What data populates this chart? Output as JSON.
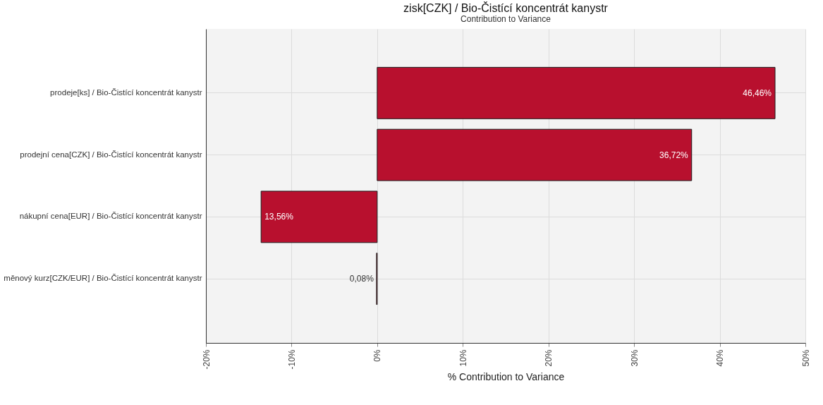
{
  "chart_data": {
    "type": "bar",
    "orientation": "horizontal",
    "title": "zisk[CZK] / Bio-Čistící koncentrát kanystr",
    "subtitle": "Contribution to Variance",
    "xlabel": "% Contribution to Variance",
    "categories": [
      "prodeje[ks] / Bio-Čistící koncentrát kanystr",
      "prodejní cena[CZK] / Bio-Čistící koncentrát kanystr",
      "nákupní cena[EUR] / Bio-Čistící koncentrát kanystr",
      "měnový kurz[CZK/EUR] / Bio-Čistící koncentrát kanystr"
    ],
    "values": [
      46.46,
      36.72,
      13.56,
      0.08
    ],
    "base": [
      0,
      0,
      -13.56,
      -0.08
    ],
    "value_labels": [
      "46,46%",
      "36,72%",
      "13,56%",
      "0,08%"
    ],
    "colors": [
      "#b8102e",
      "#b8102e",
      "#b8102e",
      "#b8102e"
    ],
    "xlim": [
      -20,
      50
    ],
    "xticks": [
      {
        "value": -20,
        "label": "-20%"
      },
      {
        "value": -10,
        "label": "-10%"
      },
      {
        "value": 0,
        "label": "0%"
      },
      {
        "value": 10,
        "label": "10%"
      },
      {
        "value": 20,
        "label": "20%"
      },
      {
        "value": 30,
        "label": "30%"
      },
      {
        "value": 40,
        "label": "40%"
      },
      {
        "value": 50,
        "label": "50%"
      }
    ],
    "grid": true
  }
}
